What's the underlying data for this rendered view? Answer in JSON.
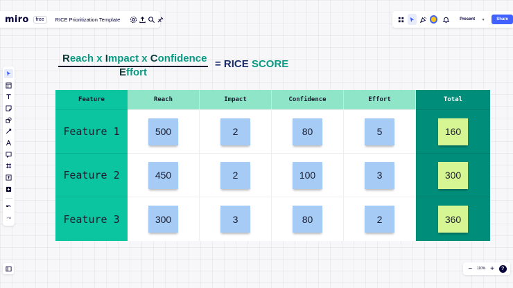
{
  "app": {
    "logo": "miro",
    "plan": "free",
    "board_title": "RICE Prioritization Template"
  },
  "topbar_right": {
    "present_label": "Present",
    "share_label": "Share",
    "caret": "▾"
  },
  "formula": {
    "num_parts": [
      {
        "first": "R",
        "rest": "each"
      },
      {
        "sep": " x "
      },
      {
        "first": "I",
        "rest": "mpact"
      },
      {
        "sep": " x "
      },
      {
        "first": "C",
        "rest": "onfidence"
      }
    ],
    "den_first": "E",
    "den_rest": "ffort",
    "eq_prefix": "= RICE ",
    "eq_score": "SCORE"
  },
  "table": {
    "headers": [
      "Feature",
      "Reach",
      "Impact",
      "Confidence",
      "Effort",
      "Total"
    ],
    "rows": [
      {
        "feature": "Feature 1",
        "reach": "500",
        "impact": "2",
        "confidence": "80",
        "effort": "5",
        "total": "160"
      },
      {
        "feature": "Feature 2",
        "reach": "450",
        "impact": "2",
        "confidence": "100",
        "effort": "3",
        "total": "300"
      },
      {
        "feature": "Feature 3",
        "reach": "300",
        "impact": "3",
        "confidence": "80",
        "effort": "2",
        "total": "360"
      }
    ]
  },
  "zoom": {
    "minus": "−",
    "value": "110%",
    "plus": "+",
    "help": "?"
  },
  "colors": {
    "teal": "#0ac59f",
    "light_teal": "#8fe5c8",
    "dark_teal": "#008e7a",
    "blue_sticky": "#a6ccf5",
    "yellow_sticky": "#d5f692",
    "accent": "#4262ff"
  }
}
